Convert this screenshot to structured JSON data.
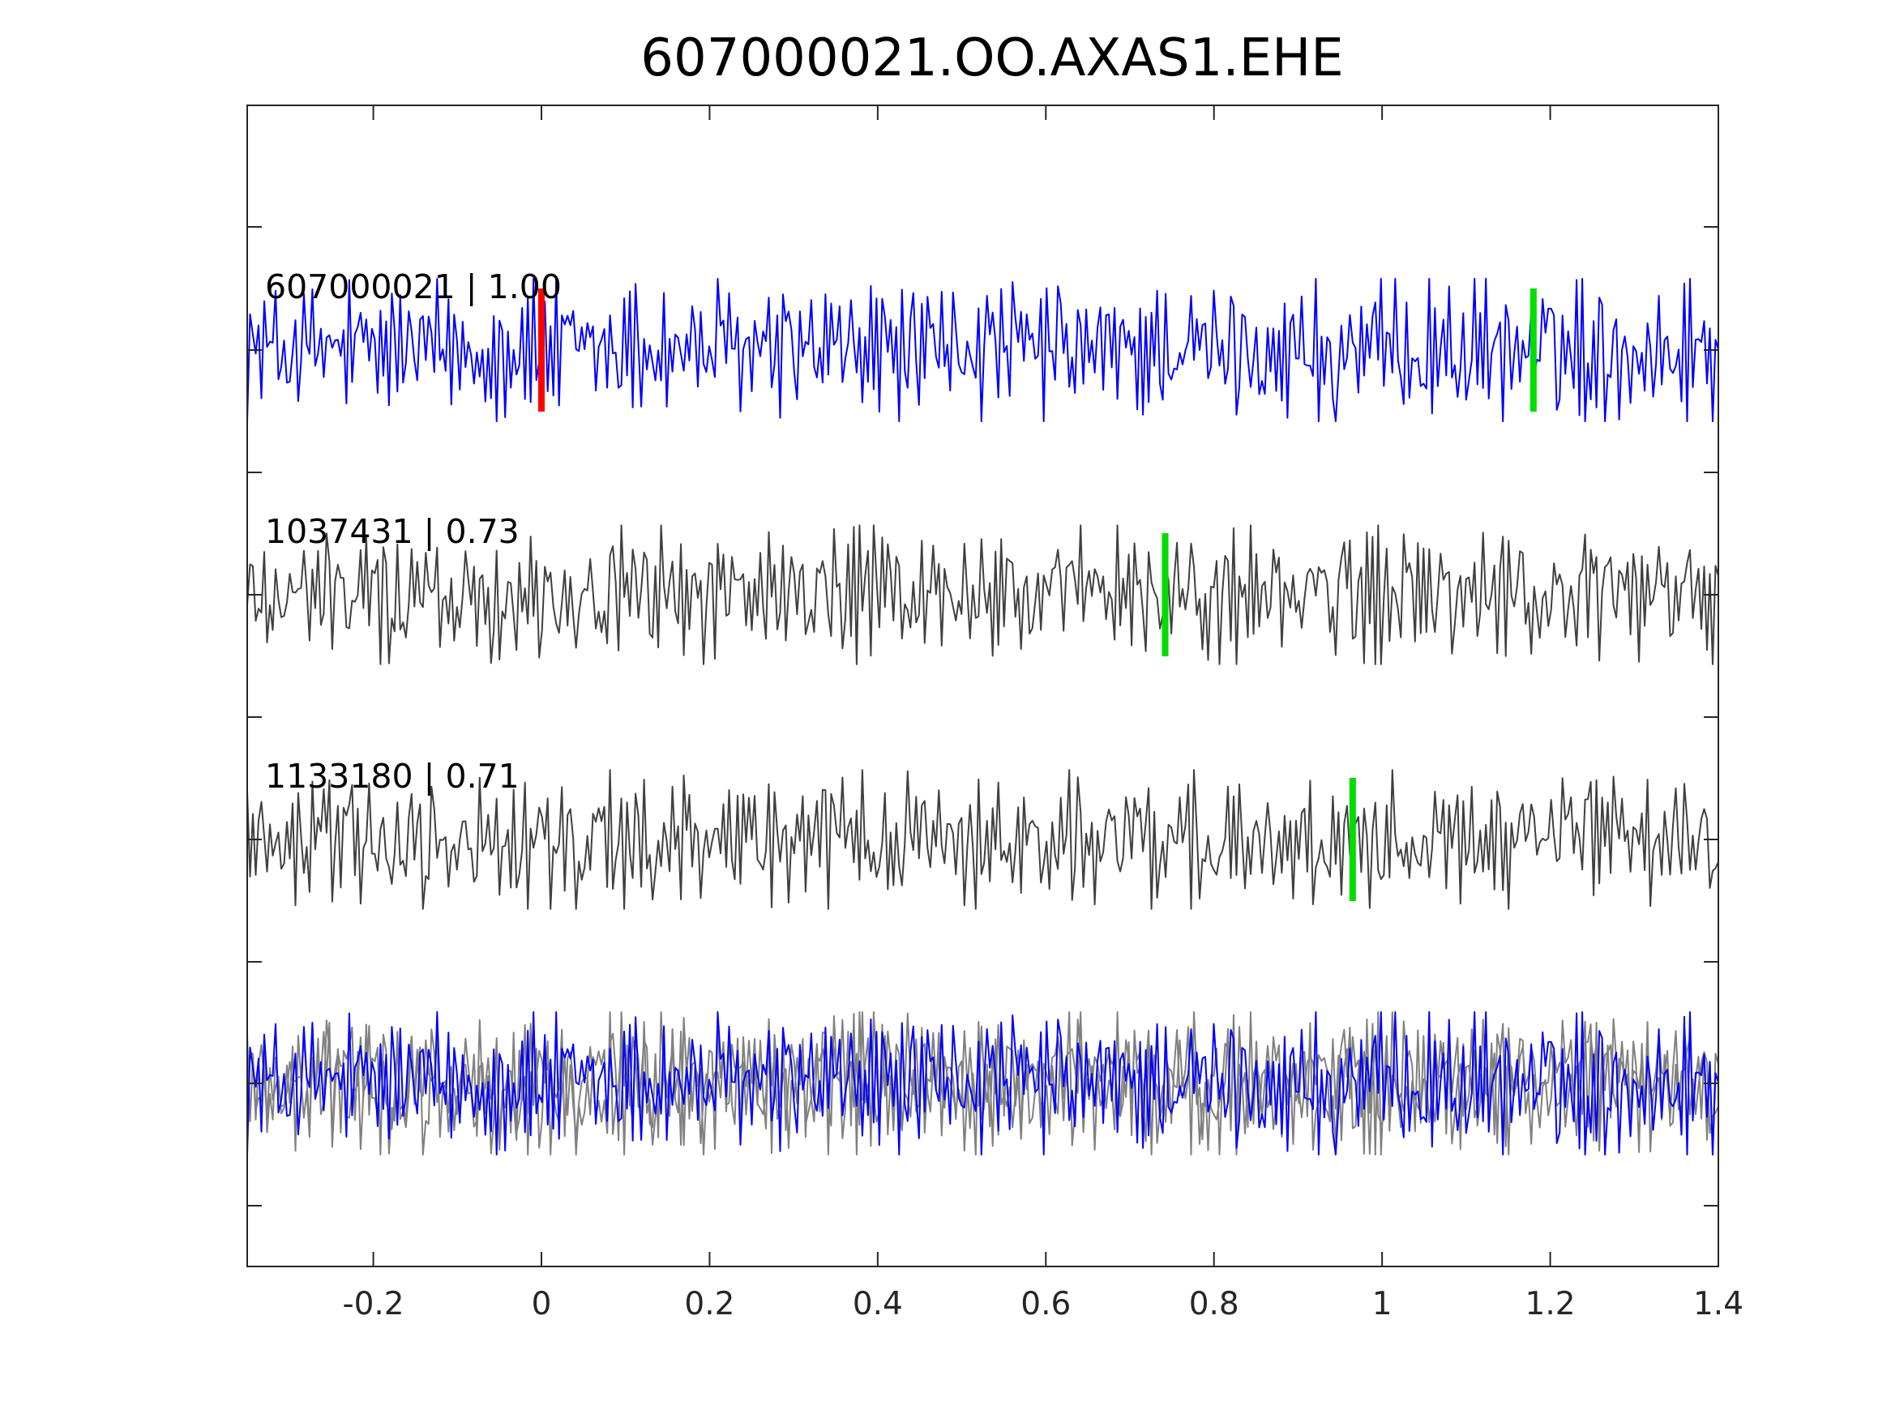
{
  "chart_data": {
    "type": "line",
    "title": "607000021.OO.AXAS1.EHE",
    "xlabel": "",
    "ylabel": "",
    "xlim": [
      -0.35,
      1.4
    ],
    "x_ticks": [
      -0.2,
      0,
      0.2,
      0.4,
      0.6,
      0.8,
      1,
      1.2,
      1.4
    ],
    "x_tick_labels": [
      "-0.2",
      "0",
      "0.2",
      "0.4",
      "0.6",
      "0.8",
      "1",
      "1.2",
      "1.4"
    ],
    "y_tick_labels_shown": false,
    "box": true,
    "grid": false,
    "series": [
      {
        "name": "607000021 | 1.00",
        "id": "607000021",
        "correlation": 1.0,
        "color": "#0000ff",
        "markers": [
          {
            "x": 0.0,
            "color": "#ff0000"
          },
          {
            "x": 1.18,
            "color": "#00dd00"
          }
        ]
      },
      {
        "name": "1037431 | 0.73",
        "id": "1037431",
        "correlation": 0.73,
        "color": "#404040",
        "markers": [
          {
            "x": 0.742,
            "color": "#00dd00"
          }
        ]
      },
      {
        "name": "1133180 | 0.71",
        "id": "1133180",
        "correlation": 0.71,
        "color": "#404040",
        "markers": [
          {
            "x": 0.965,
            "color": "#00dd00"
          }
        ]
      }
    ],
    "overlay_panel": {
      "description_colors": {
        "reference": "#0000ff",
        "others": "#808080"
      }
    },
    "colors": {
      "axis": "#262626",
      "reference_trace": "#0000ff",
      "other_trace": "#404040",
      "overlay_other": "#808080",
      "pick_primary": "#ff0000",
      "pick_secondary": "#00dd00"
    }
  }
}
